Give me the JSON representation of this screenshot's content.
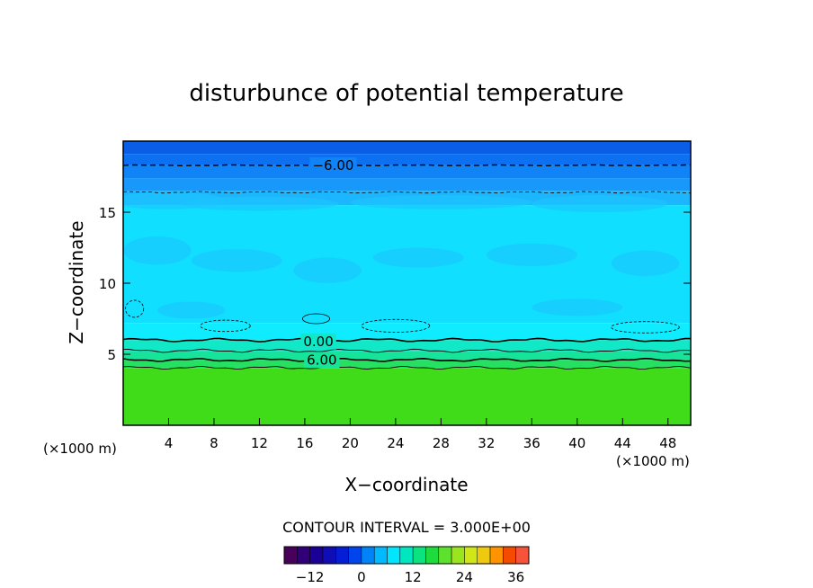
{
  "chart_data": {
    "type": "heatmap",
    "title": "disturbunce of potential temperature",
    "xlabel": "X−coordinate",
    "ylabel": "Z−coordinate",
    "x_unit_left": "(×1000 m)",
    "x_unit_right": "(×1000 m)",
    "xlim": [
      0,
      50
    ],
    "ylim": [
      0,
      20
    ],
    "x_ticks": [
      4,
      8,
      12,
      16,
      20,
      24,
      28,
      32,
      36,
      40,
      44,
      48
    ],
    "y_ticks": [
      5,
      10,
      15
    ],
    "contour_interval_text": "CONTOUR INTERVAL = 3.000E+00",
    "contour_labels": [
      {
        "text": "−6.00",
        "x": 18.5,
        "z": 18.3
      },
      {
        "text": "0.00",
        "x": 17.2,
        "z": 5.9
      },
      {
        "text": "6.00",
        "x": 17.5,
        "z": 4.6
      }
    ],
    "color_bands": [
      {
        "z_top": 20.0,
        "z_bottom": 19.1,
        "value": -9.0,
        "color": "#0a5ee6"
      },
      {
        "z_top": 19.1,
        "z_bottom": 18.3,
        "value": -7.5,
        "color": "#0c70f0"
      },
      {
        "z_top": 18.3,
        "z_bottom": 17.4,
        "value": -6.0,
        "color": "#1084f6"
      },
      {
        "z_top": 17.4,
        "z_bottom": 16.5,
        "value": -4.5,
        "color": "#1898fa"
      },
      {
        "z_top": 16.5,
        "z_bottom": 15.5,
        "value": -3.0,
        "color": "#1cb6ff"
      },
      {
        "z_top": 15.5,
        "z_bottom": 7.2,
        "value": -1.0,
        "color": "#10dfff"
      },
      {
        "z_top": 7.2,
        "z_bottom": 6.0,
        "value": -0.5,
        "color": "#10ecff"
      },
      {
        "z_top": 6.0,
        "z_bottom": 5.2,
        "value": 1.5,
        "color": "#10e8c8"
      },
      {
        "z_top": 5.2,
        "z_bottom": 4.6,
        "value": 4.5,
        "color": "#16e49a"
      },
      {
        "z_top": 4.6,
        "z_bottom": 4.0,
        "value": 7.5,
        "color": "#26e062"
      },
      {
        "z_top": 4.0,
        "z_bottom": 0.0,
        "value": 10.5,
        "color": "#40dc1a"
      }
    ],
    "colorbar": {
      "min": -18,
      "max": 39,
      "interval": 3,
      "tick_labels": [
        "−12",
        "0",
        "12",
        "24",
        "36"
      ],
      "tick_values": [
        -12,
        0,
        12,
        24,
        36
      ]
    }
  }
}
